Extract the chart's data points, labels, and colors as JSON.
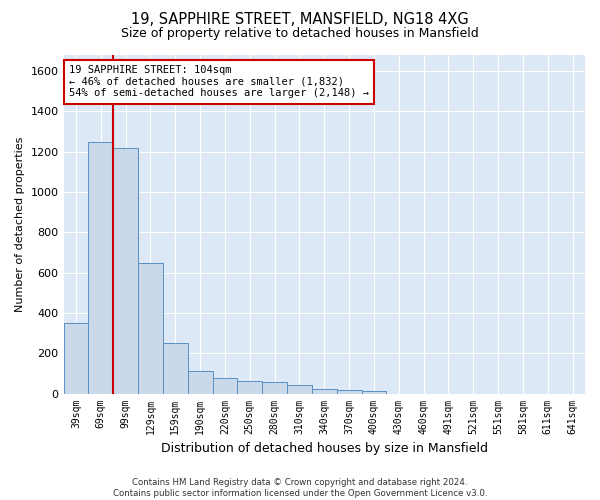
{
  "title": "19, SAPPHIRE STREET, MANSFIELD, NG18 4XG",
  "subtitle": "Size of property relative to detached houses in Mansfield",
  "xlabel": "Distribution of detached houses by size in Mansfield",
  "ylabel": "Number of detached properties",
  "categories": [
    "39sqm",
    "69sqm",
    "99sqm",
    "129sqm",
    "159sqm",
    "190sqm",
    "220sqm",
    "250sqm",
    "280sqm",
    "310sqm",
    "340sqm",
    "370sqm",
    "400sqm",
    "430sqm",
    "460sqm",
    "491sqm",
    "521sqm",
    "551sqm",
    "581sqm",
    "611sqm",
    "641sqm"
  ],
  "values": [
    350,
    1250,
    1220,
    650,
    250,
    110,
    75,
    60,
    55,
    40,
    25,
    20,
    15,
    0,
    0,
    0,
    0,
    0,
    0,
    0,
    0
  ],
  "bar_color": "#c9d9ea",
  "bar_edge_color": "#5a8fc2",
  "red_line_index": 2,
  "annotation_text": "19 SAPPHIRE STREET: 104sqm\n← 46% of detached houses are smaller (1,832)\n54% of semi-detached houses are larger (2,148) →",
  "annotation_box_facecolor": "#ffffff",
  "annotation_border_color": "#cc0000",
  "ylim": [
    0,
    1680
  ],
  "yticks": [
    0,
    200,
    400,
    600,
    800,
    1000,
    1200,
    1400,
    1600
  ],
  "footer_text": "Contains HM Land Registry data © Crown copyright and database right 2024.\nContains public sector information licensed under the Open Government Licence v3.0.",
  "plot_background": "#dce8f5",
  "fig_background": "#ffffff"
}
